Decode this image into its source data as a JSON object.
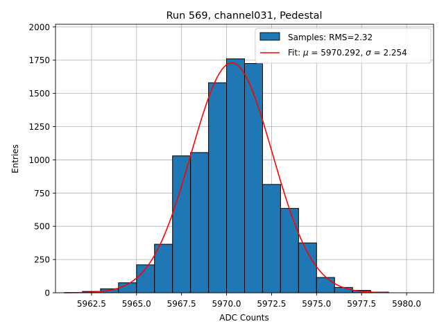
{
  "chart_data": {
    "type": "bar",
    "title": "Run 569, channel031, Pedestal",
    "xlabel": "ADC Counts",
    "ylabel": "Entries",
    "xlim": [
      5960.5,
      5981.5
    ],
    "ylim": [
      0,
      2020
    ],
    "xticks": [
      5962.5,
      5965.0,
      5967.5,
      5970.0,
      5972.5,
      5975.0,
      5977.5,
      5980.0
    ],
    "xtick_labels": [
      "5962.5",
      "5965.0",
      "5967.5",
      "5970.0",
      "5972.5",
      "5975.0",
      "5977.5",
      "5980.0"
    ],
    "yticks": [
      0,
      250,
      500,
      750,
      1000,
      1250,
      1500,
      1750,
      2000
    ],
    "ytick_labels": [
      "0",
      "250",
      "500",
      "750",
      "1000",
      "1250",
      "1500",
      "1750",
      "2000"
    ],
    "grid": true,
    "legend_position": "top-right",
    "histogram": {
      "name": "Samples: RMS=2.32",
      "bin_edges": [
        5961,
        5962,
        5963,
        5964,
        5965,
        5966,
        5967,
        5968,
        5969,
        5970,
        5971,
        5972,
        5973,
        5974,
        5975,
        5976,
        5977,
        5978,
        5979,
        5980,
        5981
      ],
      "counts": [
        2,
        10,
        30,
        75,
        210,
        365,
        1030,
        1055,
        1580,
        1760,
        1725,
        815,
        635,
        375,
        115,
        40,
        18,
        5,
        0,
        0
      ],
      "color": "#1f77b4",
      "edge_color": "#000000"
    },
    "fit": {
      "name": "Fit: μ = 5970.292, σ = 2.254",
      "label_prefix": "Fit: ",
      "mu_symbol": "μ",
      "mu_text": " = 5970.292, ",
      "sigma_symbol": "σ",
      "sigma_text": " = 2.254",
      "mu": 5970.292,
      "sigma": 2.254,
      "amplitude": 1730,
      "x_range": [
        5961,
        5979
      ],
      "color": "#ff0000"
    },
    "legend": {
      "hist_label": "Samples: RMS=2.32"
    }
  }
}
